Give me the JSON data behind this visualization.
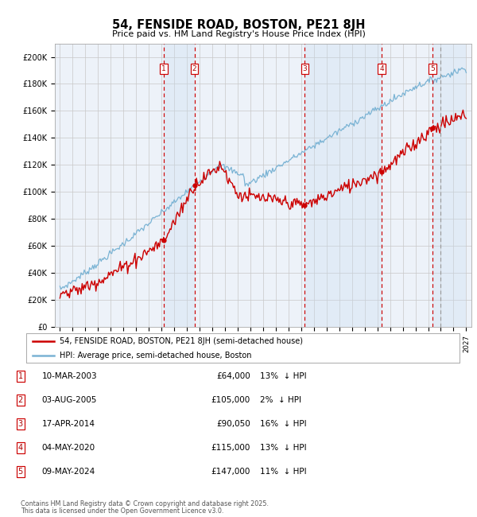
{
  "title": "54, FENSIDE ROAD, BOSTON, PE21 8JH",
  "subtitle": "Price paid vs. HM Land Registry's House Price Index (HPI)",
  "ylim": [
    0,
    210000
  ],
  "yticks": [
    0,
    20000,
    40000,
    60000,
    80000,
    100000,
    120000,
    140000,
    160000,
    180000,
    200000
  ],
  "ytick_labels": [
    "£0",
    "£20K",
    "£40K",
    "£60K",
    "£80K",
    "£100K",
    "£120K",
    "£140K",
    "£160K",
    "£180K",
    "£200K"
  ],
  "xlim_start": 1994.6,
  "xlim_end": 2027.4,
  "sales": [
    {
      "num": 1,
      "date": "10-MAR-2003",
      "year": 2003.19,
      "price": 64000,
      "pct": "13%"
    },
    {
      "num": 2,
      "date": "03-AUG-2005",
      "year": 2005.59,
      "price": 105000,
      "pct": "2%"
    },
    {
      "num": 3,
      "date": "17-APR-2014",
      "year": 2014.29,
      "price": 90050,
      "pct": "16%"
    },
    {
      "num": 4,
      "date": "04-MAY-2020",
      "year": 2020.34,
      "price": 115000,
      "pct": "13%"
    },
    {
      "num": 5,
      "date": "09-MAY-2024",
      "year": 2024.35,
      "price": 147000,
      "pct": "11%"
    }
  ],
  "hpi_color": "#7ab3d4",
  "price_color": "#cc0000",
  "legend_line1": "54, FENSIDE ROAD, BOSTON, PE21 8JH (semi-detached house)",
  "legend_line2": "HPI: Average price, semi-detached house, Boston",
  "footer1": "Contains HM Land Registry data © Crown copyright and database right 2025.",
  "footer2": "This data is licensed under the Open Government Licence v3.0.",
  "bg_color": "#ffffff",
  "chart_bg": "#edf2f9",
  "grid_color": "#c8c8c8",
  "shade_color": "#c8ddf0"
}
